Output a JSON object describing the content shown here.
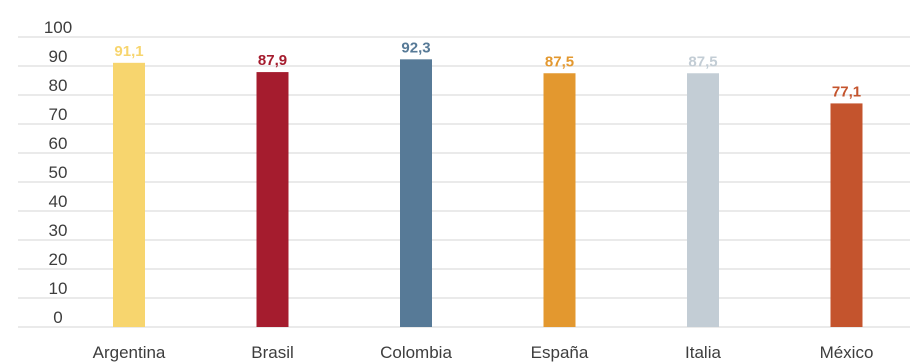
{
  "chart_data": {
    "type": "bar",
    "title": "",
    "xlabel": "",
    "ylabel": "",
    "categories": [
      "Argentina",
      "Brasil",
      "Colombia",
      "España",
      "Italia",
      "México"
    ],
    "values": [
      91.1,
      87.9,
      92.3,
      87.5,
      87.5,
      77.1
    ],
    "data_labels": [
      "91,1",
      "87,9",
      "92,3",
      "87,5",
      "87,5",
      "77,1"
    ],
    "bar_colors": [
      "#f7d56e",
      "#a51c2e",
      "#577a97",
      "#e3982f",
      "#c3cdd5",
      "#c4542d"
    ],
    "ylim": [
      0,
      100
    ],
    "yticks": [
      0,
      10,
      20,
      30,
      40,
      50,
      60,
      70,
      80,
      90,
      100
    ],
    "grid": true,
    "legend": "none"
  }
}
